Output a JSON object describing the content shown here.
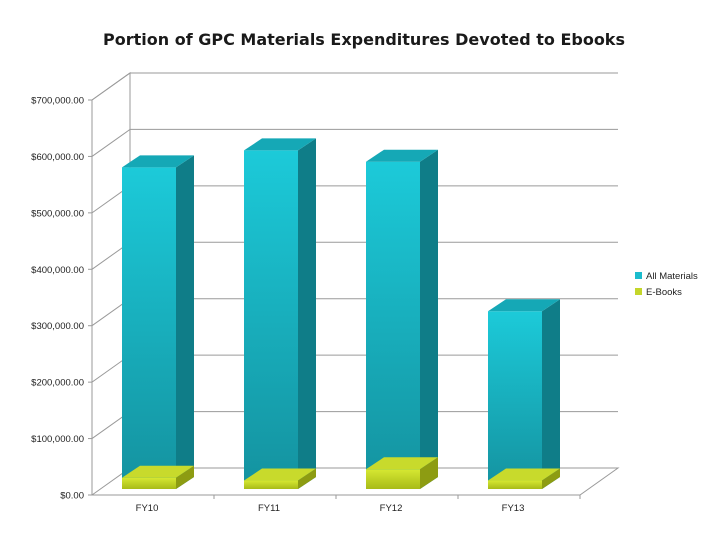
{
  "chart_data": {
    "type": "bar",
    "title": "Portion of GPC Materials Expenditures Devoted to Ebooks",
    "categories": [
      "FY10",
      "FY11",
      "FY12",
      "FY13"
    ],
    "series": [
      {
        "name": "All Materials",
        "values": [
          570000,
          600000,
          580000,
          315000
        ],
        "color": "#1bbccd"
      },
      {
        "name": "E-Books",
        "values": [
          20000,
          15000,
          35000,
          15000
        ],
        "color": "#c4d62a"
      }
    ],
    "ylim": [
      0,
      700000
    ],
    "yticks": [
      0,
      100000,
      200000,
      300000,
      400000,
      500000,
      600000,
      700000
    ],
    "ytick_labels": [
      "$0.00",
      "$100,000.00",
      "$200,000.00",
      "$300,000.00",
      "$400,000.00",
      "$500,000.00",
      "$600,000.00",
      "$700,000.00"
    ],
    "xlabel": "",
    "ylabel": "",
    "grid": true,
    "legend": "right",
    "style": "3d-column"
  }
}
